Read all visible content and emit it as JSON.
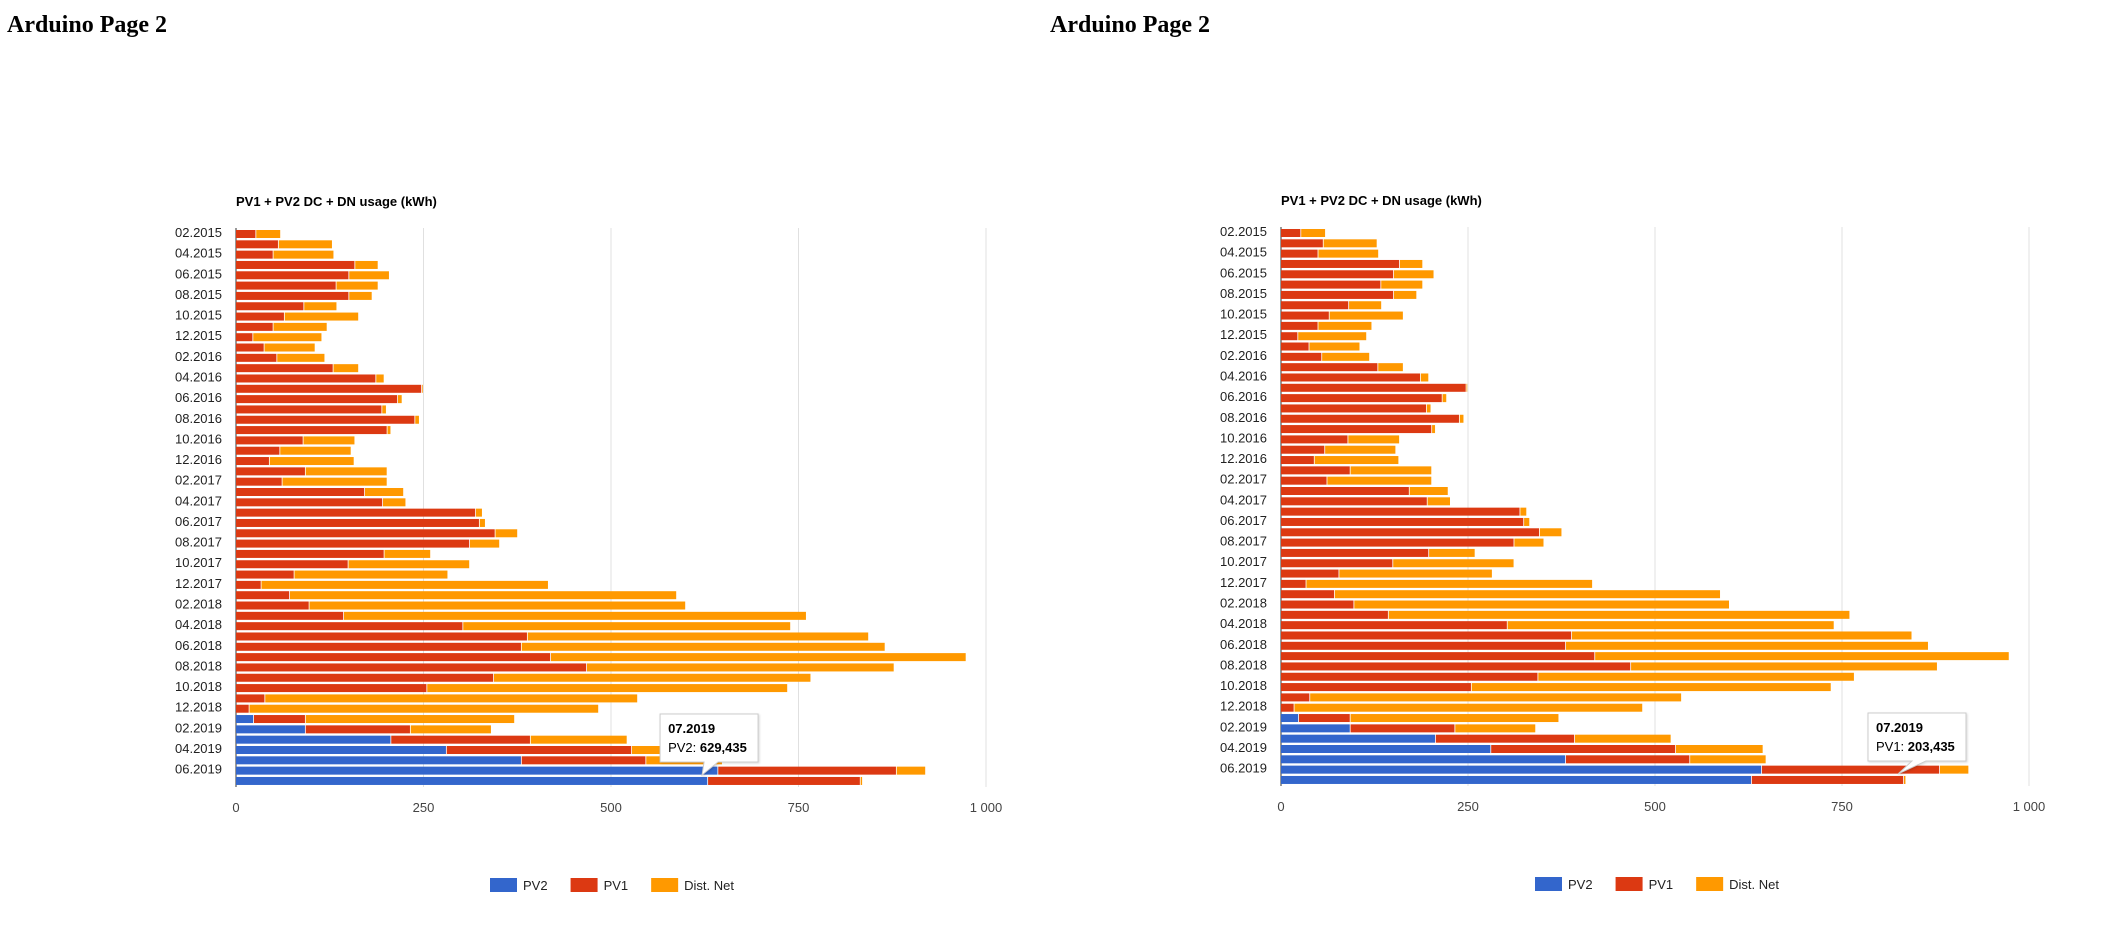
{
  "page": {
    "headings": [
      "Arduino Page 2",
      "Arduino Page 2"
    ]
  },
  "colors": {
    "PV2": "#3366cc",
    "PV1": "#dc3912",
    "Dist. Net": "#ff9900",
    "gridline": "#e0e0e0",
    "axis": "#333333"
  },
  "tooltips": [
    {
      "chart": 0,
      "category": "07.2019",
      "series": "PV2",
      "title": "07.2019",
      "label": "PV2: ",
      "value": "629,435"
    },
    {
      "chart": 1,
      "category": "07.2019",
      "series": "PV1",
      "title": "07.2019",
      "label": "PV1: ",
      "value": "203,435"
    }
  ],
  "chart_data": [
    {
      "type": "bar",
      "orientation": "horizontal",
      "stacked": true,
      "title": "PV1 + PV2 DC + DN usage (kWh)",
      "xlabel": "",
      "ylabel": "",
      "xlim": [
        0,
        1000
      ],
      "ticks": [
        0,
        250,
        500,
        750,
        1000
      ],
      "tick_labels": [
        "0",
        "250",
        "500",
        "750",
        "1 000"
      ],
      "grid": true,
      "legend": "bottom",
      "categories": [
        "02.2015",
        "03.2015",
        "04.2015",
        "05.2015",
        "06.2015",
        "07.2015",
        "08.2015",
        "09.2015",
        "10.2015",
        "11.2015",
        "12.2015",
        "01.2016",
        "02.2016",
        "03.2016",
        "04.2016",
        "05.2016",
        "06.2016",
        "07.2016",
        "08.2016",
        "09.2016",
        "10.2016",
        "11.2016",
        "12.2016",
        "01.2017",
        "02.2017",
        "03.2017",
        "04.2017",
        "05.2017",
        "06.2017",
        "07.2017",
        "08.2017",
        "09.2017",
        "10.2017",
        "11.2017",
        "12.2017",
        "01.2018",
        "02.2018",
        "03.2018",
        "04.2018",
        "05.2018",
        "06.2018",
        "07.2018",
        "08.2018",
        "09.2018",
        "10.2018",
        "11.2018",
        "12.2018",
        "01.2019",
        "02.2019",
        "03.2019",
        "04.2019",
        "05.2019",
        "06.2019",
        "07.2019"
      ],
      "visible_category_labels": [
        "02.2015",
        "04.2015",
        "06.2015",
        "08.2015",
        "10.2015",
        "12.2015",
        "02.2016",
        "04.2016",
        "06.2016",
        "08.2016",
        "10.2016",
        "12.2016",
        "02.2017",
        "04.2017",
        "06.2017",
        "08.2017",
        "10.2017",
        "12.2017",
        "02.2018",
        "04.2018",
        "06.2018",
        "08.2018",
        "10.2018",
        "12.2018",
        "02.2019",
        "04.2019",
        "06.2019"
      ],
      "series": [
        {
          "name": "PV2",
          "values": [
            0,
            0,
            0,
            0,
            0,
            0,
            0,
            0,
            0,
            0,
            0,
            0,
            0,
            0,
            0,
            0,
            0,
            0,
            0,
            0,
            0,
            0,
            0,
            0,
            0,
            0,
            0,
            0,
            0,
            0,
            0,
            0,
            0,
            0,
            0,
            0,
            0,
            0,
            0,
            0,
            0,
            0,
            0,
            0,
            0,
            0,
            0,
            24,
            93,
            207,
            281,
            381,
            643,
            629.435
          ]
        },
        {
          "name": "PV1",
          "values": [
            27,
            57,
            50,
            159,
            151,
            134,
            151,
            91,
            65,
            50,
            23,
            38,
            55,
            130,
            187,
            248,
            216,
            195,
            239,
            202,
            90,
            59,
            45,
            93,
            62,
            172,
            196,
            320,
            325,
            346,
            312,
            198,
            150,
            78,
            34,
            72,
            98,
            144,
            303,
            389,
            381,
            420,
            468,
            344,
            255,
            39,
            18,
            69,
            140,
            186,
            247,
            166,
            238,
            203.435
          ]
        },
        {
          "name": "Dist. Net",
          "values": [
            33,
            72,
            81,
            31,
            54,
            56,
            31,
            44,
            99,
            72,
            92,
            68,
            64,
            34,
            11,
            2,
            6,
            6,
            6,
            5,
            69,
            95,
            113,
            109,
            140,
            52,
            31,
            9,
            8,
            30,
            40,
            62,
            162,
            205,
            383,
            516,
            502,
            617,
            437,
            455,
            485,
            554,
            410,
            423,
            481,
            497,
            466,
            279,
            108,
            129,
            117,
            102,
            39,
            3
          ]
        }
      ]
    },
    {
      "type": "bar",
      "orientation": "horizontal",
      "stacked": true,
      "title": "PV1 + PV2 DC + DN usage (kWh)",
      "xlabel": "",
      "ylabel": "",
      "xlim": [
        0,
        1000
      ],
      "ticks": [
        0,
        250,
        500,
        750,
        1000
      ],
      "tick_labels": [
        "0",
        "250",
        "500",
        "750",
        "1 000"
      ],
      "grid": true,
      "legend": "bottom",
      "categories": [
        "02.2015",
        "03.2015",
        "04.2015",
        "05.2015",
        "06.2015",
        "07.2015",
        "08.2015",
        "09.2015",
        "10.2015",
        "11.2015",
        "12.2015",
        "01.2016",
        "02.2016",
        "03.2016",
        "04.2016",
        "05.2016",
        "06.2016",
        "07.2016",
        "08.2016",
        "09.2016",
        "10.2016",
        "11.2016",
        "12.2016",
        "01.2017",
        "02.2017",
        "03.2017",
        "04.2017",
        "05.2017",
        "06.2017",
        "07.2017",
        "08.2017",
        "09.2017",
        "10.2017",
        "11.2017",
        "12.2017",
        "01.2018",
        "02.2018",
        "03.2018",
        "04.2018",
        "05.2018",
        "06.2018",
        "07.2018",
        "08.2018",
        "09.2018",
        "10.2018",
        "11.2018",
        "12.2018",
        "01.2019",
        "02.2019",
        "03.2019",
        "04.2019",
        "05.2019",
        "06.2019",
        "07.2019"
      ],
      "visible_category_labels": [
        "02.2015",
        "04.2015",
        "06.2015",
        "08.2015",
        "10.2015",
        "12.2015",
        "02.2016",
        "04.2016",
        "06.2016",
        "08.2016",
        "10.2016",
        "12.2016",
        "02.2017",
        "04.2017",
        "06.2017",
        "08.2017",
        "10.2017",
        "12.2017",
        "02.2018",
        "04.2018",
        "06.2018",
        "08.2018",
        "10.2018",
        "12.2018",
        "02.2019",
        "04.2019",
        "06.2019"
      ],
      "series": [
        {
          "name": "PV2",
          "values": [
            0,
            0,
            0,
            0,
            0,
            0,
            0,
            0,
            0,
            0,
            0,
            0,
            0,
            0,
            0,
            0,
            0,
            0,
            0,
            0,
            0,
            0,
            0,
            0,
            0,
            0,
            0,
            0,
            0,
            0,
            0,
            0,
            0,
            0,
            0,
            0,
            0,
            0,
            0,
            0,
            0,
            0,
            0,
            0,
            0,
            0,
            0,
            24,
            93,
            207,
            281,
            381,
            643,
            629.435
          ]
        },
        {
          "name": "PV1",
          "values": [
            27,
            57,
            50,
            159,
            151,
            134,
            151,
            91,
            65,
            50,
            23,
            38,
            55,
            130,
            187,
            248,
            216,
            195,
            239,
            202,
            90,
            59,
            45,
            93,
            62,
            172,
            196,
            320,
            325,
            346,
            312,
            198,
            150,
            78,
            34,
            72,
            98,
            144,
            303,
            389,
            381,
            420,
            468,
            344,
            255,
            39,
            18,
            69,
            140,
            186,
            247,
            166,
            238,
            203.435
          ]
        },
        {
          "name": "Dist. Net",
          "values": [
            33,
            72,
            81,
            31,
            54,
            56,
            31,
            44,
            99,
            72,
            92,
            68,
            64,
            34,
            11,
            2,
            6,
            6,
            6,
            5,
            69,
            95,
            113,
            109,
            140,
            52,
            31,
            9,
            8,
            30,
            40,
            62,
            162,
            205,
            383,
            516,
            502,
            617,
            437,
            455,
            485,
            554,
            410,
            423,
            481,
            497,
            466,
            279,
            108,
            129,
            117,
            102,
            39,
            3
          ]
        }
      ]
    }
  ]
}
